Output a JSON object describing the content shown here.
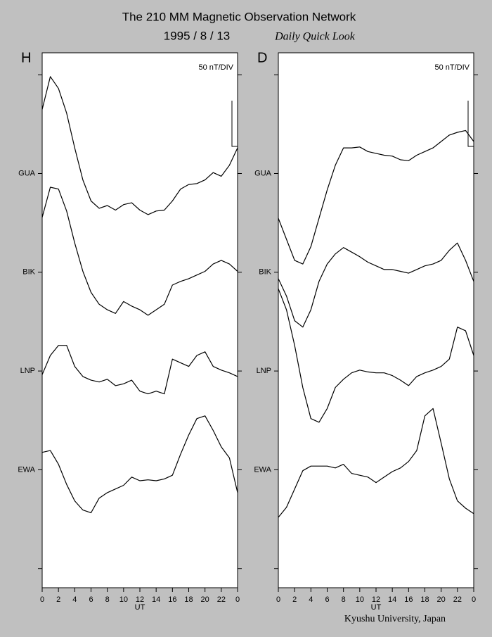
{
  "title": "The 210 MM Magnetic Observation Network",
  "date": "1995 / 8 / 13",
  "subtitle": "Daily Quick Look",
  "credit": "Kyushu University, Japan",
  "chart_data": [
    {
      "type": "line",
      "panel_label": "H",
      "scale_label": "50 nT/DIV",
      "x_label": "UT",
      "x": [
        0,
        1,
        2,
        3,
        4,
        5,
        6,
        7,
        8,
        9,
        10,
        11,
        12,
        13,
        14,
        15,
        16,
        17,
        18,
        19,
        20,
        21,
        22,
        23,
        24
      ],
      "xlim": [
        0,
        24
      ],
      "xticks": [
        0,
        2,
        4,
        6,
        8,
        10,
        12,
        14,
        16,
        18,
        20,
        22,
        {
          "value": 24,
          "label": "0"
        }
      ],
      "ylim": [
        0,
        585
      ],
      "yticks": [
        {
          "value": 21,
          "label": null
        },
        {
          "value": 129,
          "label": "EWA"
        },
        {
          "value": 237,
          "label": "LNP"
        },
        {
          "value": 345,
          "label": "BIK"
        },
        {
          "value": 453,
          "label": "GUA"
        },
        {
          "value": 561,
          "label": null
        }
      ],
      "series": [
        {
          "name": "GUA",
          "color": "#000000",
          "values": [
            523,
            559,
            546,
            519,
            481,
            446,
            423,
            415,
            418,
            413,
            419,
            421,
            413,
            408,
            412,
            413,
            423,
            436,
            441,
            442,
            446,
            454,
            450,
            462,
            481
          ]
        },
        {
          "name": "BIK",
          "color": "#000000",
          "values": [
            405,
            438,
            436,
            412,
            377,
            346,
            323,
            310,
            304,
            300,
            313,
            308,
            304,
            298,
            304,
            310,
            331,
            335,
            338,
            342,
            346,
            354,
            358,
            354,
            346
          ]
        },
        {
          "name": "LNP",
          "color": "#000000",
          "values": [
            233,
            254,
            265,
            265,
            242,
            231,
            227,
            225,
            228,
            221,
            223,
            227,
            215,
            212,
            215,
            212,
            250,
            246,
            242,
            254,
            258,
            242,
            238,
            235,
            231
          ]
        },
        {
          "name": "EWA",
          "color": "#000000",
          "values": [
            148,
            150,
            135,
            113,
            95,
            85,
            82,
            98,
            104,
            108,
            112,
            121,
            117,
            118,
            117,
            119,
            123,
            146,
            167,
            185,
            188,
            172,
            154,
            142,
            104
          ]
        }
      ]
    },
    {
      "type": "line",
      "panel_label": "D",
      "scale_label": "50 nT/DIV",
      "x_label": "UT",
      "x": [
        0,
        1,
        2,
        3,
        4,
        5,
        6,
        7,
        8,
        9,
        10,
        11,
        12,
        13,
        14,
        15,
        16,
        17,
        18,
        19,
        20,
        21,
        22,
        23,
        24
      ],
      "xlim": [
        0,
        24
      ],
      "xticks": [
        0,
        2,
        4,
        6,
        8,
        10,
        12,
        14,
        16,
        18,
        20,
        22,
        {
          "value": 24,
          "label": "0"
        }
      ],
      "ylim": [
        0,
        585
      ],
      "yticks": [
        {
          "value": 21,
          "label": null
        },
        {
          "value": 129,
          "label": "EWA"
        },
        {
          "value": 237,
          "label": "LNP"
        },
        {
          "value": 345,
          "label": "BIK"
        },
        {
          "value": 453,
          "label": "GUA"
        },
        {
          "value": 561,
          "label": null
        }
      ],
      "series": [
        {
          "name": "GUA",
          "color": "#000000",
          "values": [
            404,
            381,
            358,
            354,
            373,
            404,
            435,
            462,
            481,
            481,
            482,
            477,
            475,
            473,
            472,
            468,
            467,
            473,
            477,
            481,
            488,
            495,
            498,
            500,
            488
          ]
        },
        {
          "name": "BIK",
          "color": "#000000",
          "values": [
            338,
            319,
            292,
            285,
            304,
            335,
            354,
            365,
            372,
            367,
            362,
            356,
            352,
            348,
            348,
            346,
            344,
            348,
            352,
            354,
            358,
            369,
            377,
            358,
            335
          ]
        },
        {
          "name": "LNP",
          "color": "#000000",
          "values": [
            327,
            304,
            265,
            219,
            185,
            181,
            196,
            219,
            228,
            235,
            238,
            236,
            235,
            235,
            232,
            227,
            221,
            231,
            235,
            238,
            242,
            250,
            285,
            281,
            254
          ]
        },
        {
          "name": "EWA",
          "color": "#000000",
          "values": [
            77,
            88,
            108,
            128,
            133,
            133,
            133,
            131,
            135,
            125,
            123,
            121,
            115,
            121,
            127,
            131,
            138,
            150,
            188,
            196,
            158,
            119,
            95,
            87,
            81
          ]
        }
      ]
    }
  ]
}
